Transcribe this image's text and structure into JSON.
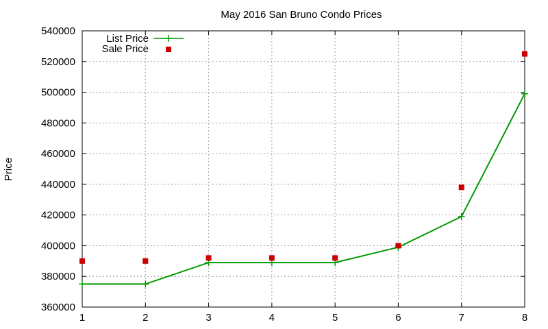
{
  "chart_data": {
    "type": "line",
    "title": "May 2016 San Bruno Condo Prices",
    "xlabel": "",
    "ylabel": "Price",
    "x": [
      1,
      2,
      3,
      4,
      5,
      6,
      7,
      8
    ],
    "xlim": [
      1,
      8
    ],
    "ylim": [
      360000,
      540000
    ],
    "xticks": [
      "1",
      "2",
      "3",
      "4",
      "5",
      "6",
      "7",
      "8"
    ],
    "yticks": [
      "360000",
      "380000",
      "400000",
      "420000",
      "440000",
      "460000",
      "480000",
      "500000",
      "520000",
      "540000"
    ],
    "grid": true,
    "legend_position": "top-left",
    "series": [
      {
        "name": "List Price",
        "type": "line",
        "marker": "plus",
        "color": "#009900",
        "values": [
          375000,
          375000,
          389000,
          389000,
          389000,
          399000,
          419000,
          499000
        ]
      },
      {
        "name": "Sale Price",
        "type": "scatter",
        "marker": "square",
        "color": "#cc0000",
        "values": [
          390000,
          390000,
          392000,
          392000,
          392000,
          400000,
          438000,
          525000
        ]
      }
    ]
  }
}
